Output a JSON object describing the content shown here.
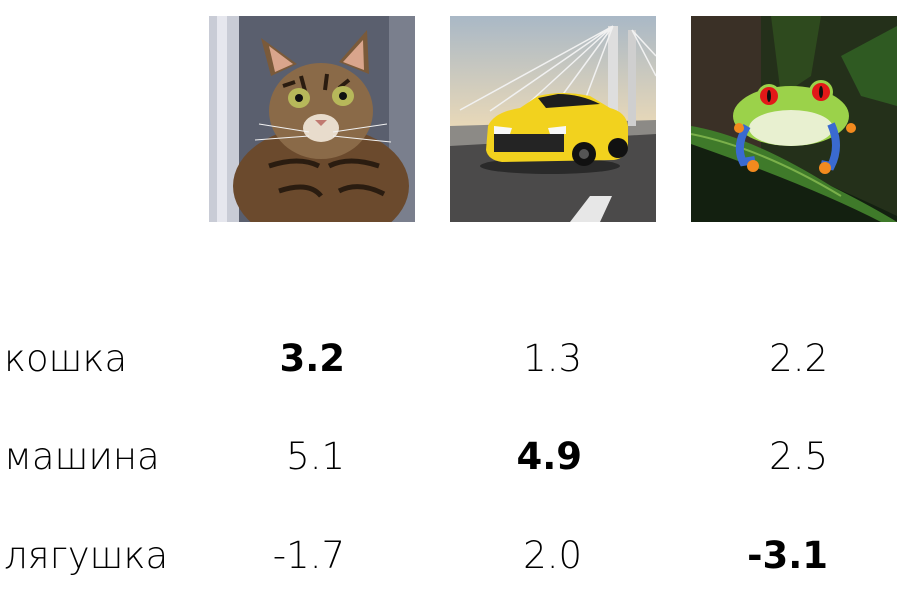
{
  "images": [
    {
      "icon": "cat-photo"
    },
    {
      "icon": "car-photo"
    },
    {
      "icon": "frog-photo"
    }
  ],
  "rows": [
    {
      "label": "кошка",
      "scores": [
        "3.2",
        "1.3",
        "2.2"
      ],
      "bold_index": 0
    },
    {
      "label": "машина",
      "scores": [
        "5.1",
        "4.9",
        "2.5"
      ],
      "bold_index": 1
    },
    {
      "label": "лягушка",
      "scores": [
        "-1.7",
        "2.0",
        "-3.1"
      ],
      "bold_index": 2
    }
  ]
}
